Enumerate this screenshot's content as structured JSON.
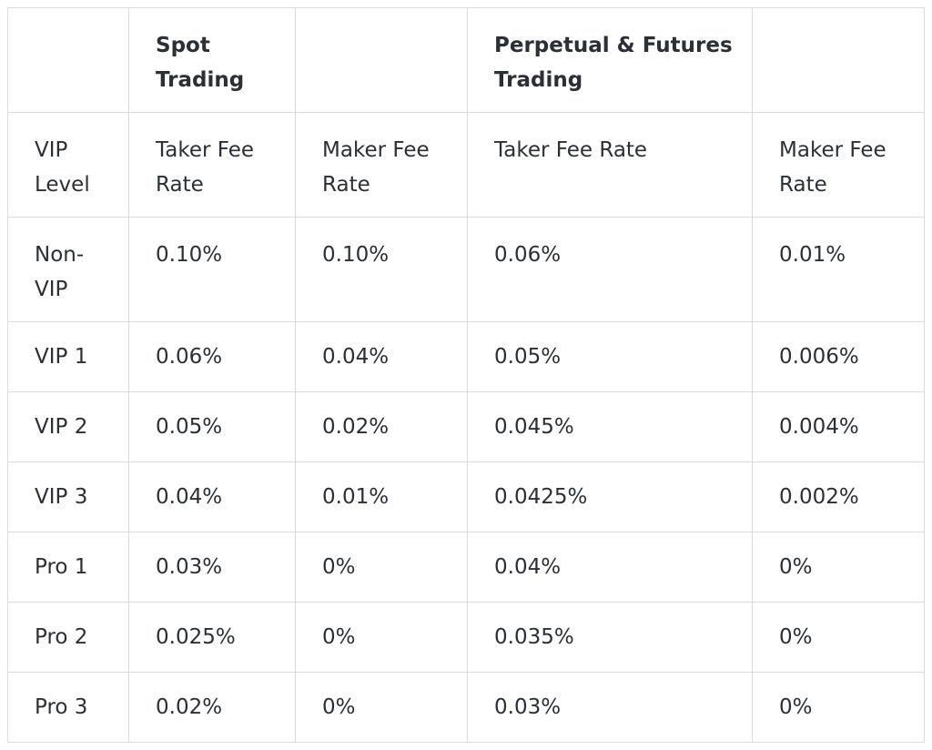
{
  "table": {
    "group_headers": [
      "",
      "Spot\nTrading",
      "",
      "Perpetual & Futures\nTrading",
      ""
    ],
    "column_headers": [
      "VIP\nLevel",
      "Taker Fee\nRate",
      "Maker Fee\nRate",
      "Taker Fee Rate",
      "Maker Fee\nRate"
    ],
    "rows": [
      {
        "level": "Non-\nVIP",
        "spot_taker": "0.10%",
        "spot_maker": "0.10%",
        "fut_taker": "0.06%",
        "fut_maker": "0.01%"
      },
      {
        "level": "VIP 1",
        "spot_taker": "0.06%",
        "spot_maker": "0.04%",
        "fut_taker": "0.05%",
        "fut_maker": "0.006%"
      },
      {
        "level": "VIP 2",
        "spot_taker": "0.05%",
        "spot_maker": "0.02%",
        "fut_taker": "0.045%",
        "fut_maker": "0.004%"
      },
      {
        "level": "VIP 3",
        "spot_taker": "0.04%",
        "spot_maker": "0.01%",
        "fut_taker": "0.0425%",
        "fut_maker": "0.002%"
      },
      {
        "level": "Pro 1",
        "spot_taker": "0.03%",
        "spot_maker": "0%",
        "fut_taker": "0.04%",
        "fut_maker": "0%"
      },
      {
        "level": "Pro 2",
        "spot_taker": "0.025%",
        "spot_maker": "0%",
        "fut_taker": "0.035%",
        "fut_maker": "0%"
      },
      {
        "level": "Pro 3",
        "spot_taker": "0.02%",
        "spot_maker": "0%",
        "fut_taker": "0.03%",
        "fut_maker": "0%"
      }
    ]
  }
}
